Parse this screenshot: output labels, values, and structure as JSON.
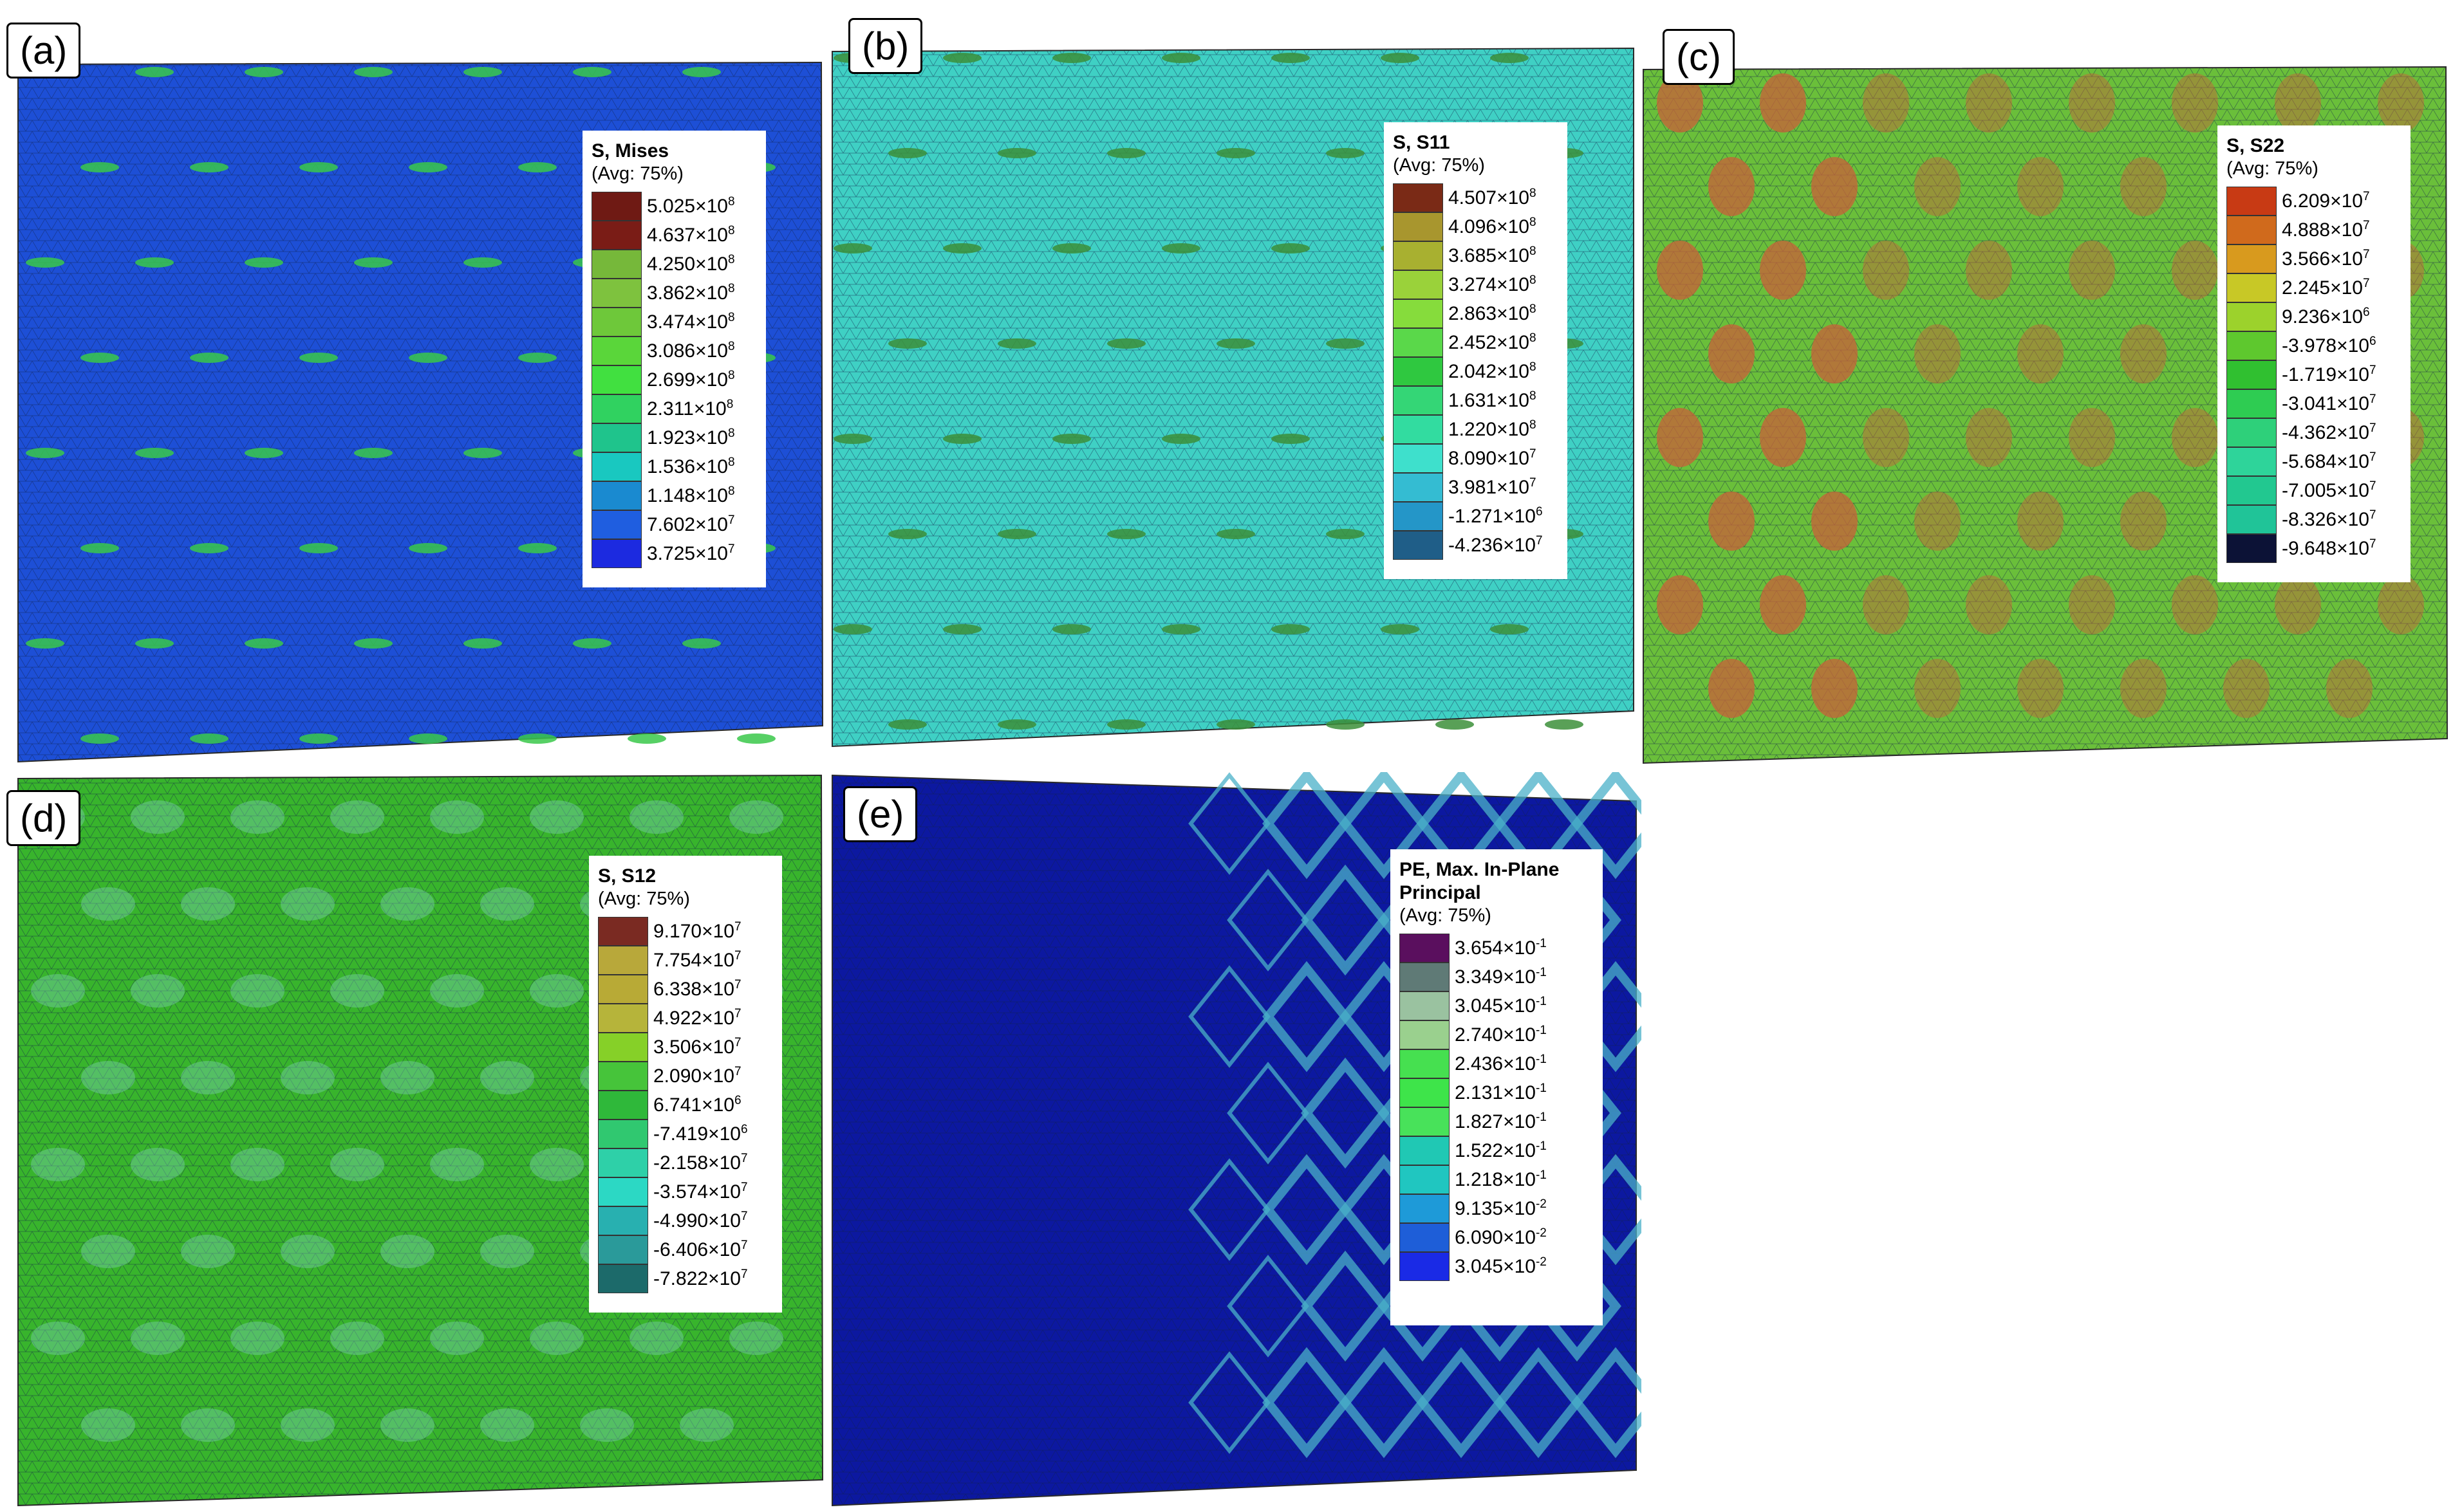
{
  "panels": [
    {
      "id": "a",
      "label": "(a)",
      "base_color": "#1d4fd6",
      "accent_color": "#39c84a",
      "legend": {
        "title": [
          "S, Mises"
        ],
        "subtitle": "(Avg: 75%)",
        "items": [
          {
            "m": "5.025",
            "e": "8",
            "color": "#6f1a14"
          },
          {
            "m": "4.637",
            "e": "8",
            "color": "#7a1c16"
          },
          {
            "m": "4.250",
            "e": "8",
            "color": "#76b83a"
          },
          {
            "m": "3.862",
            "e": "8",
            "color": "#7ec23e"
          },
          {
            "m": "3.474",
            "e": "8",
            "color": "#6ec83a"
          },
          {
            "m": "3.086",
            "e": "8",
            "color": "#5ad63a"
          },
          {
            "m": "2.699",
            "e": "8",
            "color": "#41e040"
          },
          {
            "m": "2.311",
            "e": "8",
            "color": "#30d260"
          },
          {
            "m": "1.923",
            "e": "8",
            "color": "#1fc48c"
          },
          {
            "m": "1.536",
            "e": "8",
            "color": "#19c8c0"
          },
          {
            "m": "1.148",
            "e": "8",
            "color": "#1a8ad0"
          },
          {
            "m": "7.602",
            "e": "7",
            "color": "#1f5ee0"
          },
          {
            "m": "3.725",
            "e": "7",
            "color": "#1c2ae0"
          }
        ]
      }
    },
    {
      "id": "b",
      "label": "(b)",
      "base_color": "#3fd0c4",
      "accent_color": "#3c8f3a",
      "legend": {
        "title": [
          "S, S11"
        ],
        "subtitle": "(Avg: 75%)",
        "items": [
          {
            "m": "4.507",
            "e": "8",
            "color": "#7a2a16"
          },
          {
            "m": "4.096",
            "e": "8",
            "color": "#a8962e"
          },
          {
            "m": "3.685",
            "e": "8",
            "color": "#a8b030"
          },
          {
            "m": "3.274",
            "e": "8",
            "color": "#9ad23a"
          },
          {
            "m": "2.863",
            "e": "8",
            "color": "#86dc3c"
          },
          {
            "m": "2.452",
            "e": "8",
            "color": "#5ad84a"
          },
          {
            "m": "2.042",
            "e": "8",
            "color": "#2fc840"
          },
          {
            "m": "1.631",
            "e": "8",
            "color": "#34d676"
          },
          {
            "m": "1.220",
            "e": "8",
            "color": "#32dca0"
          },
          {
            "m": "8.090",
            "e": "7",
            "color": "#3ee0cc"
          },
          {
            "m": "3.981",
            "e": "7",
            "color": "#34bcd2"
          },
          {
            "m": "-1.271",
            "e": "6",
            "color": "#2496c8"
          },
          {
            "m": "-4.236",
            "e": "7",
            "color": "#1f5e88"
          }
        ]
      }
    },
    {
      "id": "c",
      "label": "(c)",
      "base_color": "#6abf3a",
      "accent_color": "#c9603a",
      "legend": {
        "title": [
          "S, S22"
        ],
        "subtitle": "(Avg: 75%)",
        "items": [
          {
            "m": "6.209",
            "e": "7",
            "color": "#c83a14"
          },
          {
            "m": "4.888",
            "e": "7",
            "color": "#d06a1c"
          },
          {
            "m": "3.566",
            "e": "7",
            "color": "#d89a1e"
          },
          {
            "m": "2.245",
            "e": "7",
            "color": "#c8c826"
          },
          {
            "m": "9.236",
            "e": "6",
            "color": "#9cd22c"
          },
          {
            "m": "-3.978",
            "e": "6",
            "color": "#5ec82e"
          },
          {
            "m": "-1.719",
            "e": "7",
            "color": "#30c030"
          },
          {
            "m": "-3.041",
            "e": "7",
            "color": "#2ecc52"
          },
          {
            "m": "-4.362",
            "e": "7",
            "color": "#2ed07a"
          },
          {
            "m": "-5.684",
            "e": "7",
            "color": "#2ed49a"
          },
          {
            "m": "-7.005",
            "e": "7",
            "color": "#22c890"
          },
          {
            "m": "-8.326",
            "e": "7",
            "color": "#20c498"
          },
          {
            "m": "-9.648",
            "e": "7",
            "color": "#0c1236"
          }
        ]
      }
    },
    {
      "id": "d",
      "label": "(d)",
      "base_color": "#38b42c",
      "accent_color": "#7fd0b8",
      "legend": {
        "title": [
          "S, S12"
        ],
        "subtitle": "(Avg: 75%)",
        "items": [
          {
            "m": "9.170",
            "e": "7",
            "color": "#7a2a22"
          },
          {
            "m": "7.754",
            "e": "7",
            "color": "#b8a83a"
          },
          {
            "m": "6.338",
            "e": "7",
            "color": "#b8aa36"
          },
          {
            "m": "4.922",
            "e": "7",
            "color": "#b6b43a"
          },
          {
            "m": "3.506",
            "e": "7",
            "color": "#86d028"
          },
          {
            "m": "2.090",
            "e": "7",
            "color": "#46c43a"
          },
          {
            "m": "6.741",
            "e": "6",
            "color": "#2fb83a"
          },
          {
            "m": "-7.419",
            "e": "6",
            "color": "#30c870"
          },
          {
            "m": "-2.158",
            "e": "7",
            "color": "#2ed0a8"
          },
          {
            "m": "-3.574",
            "e": "7",
            "color": "#2cd8c4"
          },
          {
            "m": "-4.990",
            "e": "7",
            "color": "#28b0b0"
          },
          {
            "m": "-6.406",
            "e": "7",
            "color": "#2a9a9a"
          },
          {
            "m": "-7.822",
            "e": "7",
            "color": "#1c6a6a"
          }
        ]
      }
    },
    {
      "id": "e",
      "label": "(e)",
      "base_color": "#0c18a0",
      "accent_color": "#4ab0c8",
      "legend": {
        "title": [
          "PE, Max. In-Plane",
          "Principal"
        ],
        "subtitle": "(Avg: 75%)",
        "items": [
          {
            "m": "3.654",
            "e": "-1",
            "color": "#5a0f5e"
          },
          {
            "m": "3.349",
            "e": "-1",
            "color": "#5f7a76"
          },
          {
            "m": "3.045",
            "e": "-1",
            "color": "#9ac2a0"
          },
          {
            "m": "2.740",
            "e": "-1",
            "color": "#9ad08e"
          },
          {
            "m": "2.436",
            "e": "-1",
            "color": "#46e050"
          },
          {
            "m": "2.131",
            "e": "-1",
            "color": "#3ee44a"
          },
          {
            "m": "1.827",
            "e": "-1",
            "color": "#48e25a"
          },
          {
            "m": "1.522",
            "e": "-1",
            "color": "#20c8b4"
          },
          {
            "m": "1.218",
            "e": "-1",
            "color": "#20c6c0"
          },
          {
            "m": "9.135",
            "e": "-2",
            "color": "#1e9ad8"
          },
          {
            "m": "6.090",
            "e": "-2",
            "color": "#1e5ed8"
          },
          {
            "m": "3.045",
            "e": "-2",
            "color": "#1a2ae6"
          }
        ]
      }
    }
  ]
}
